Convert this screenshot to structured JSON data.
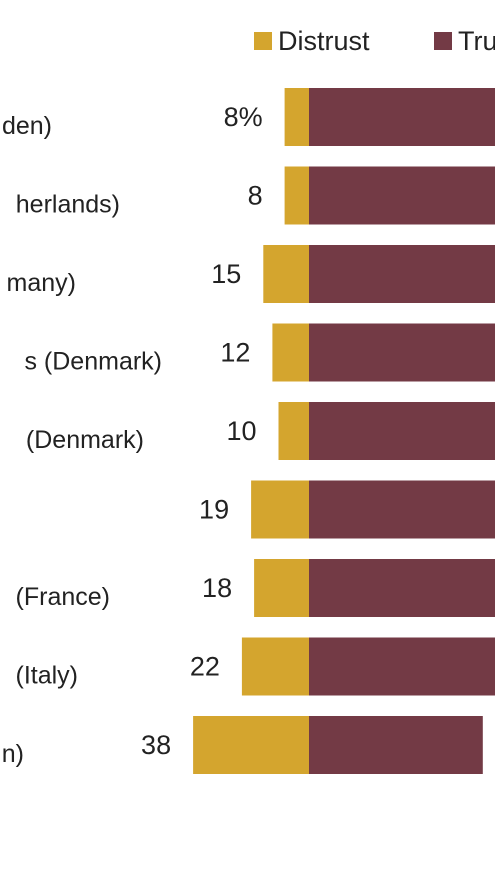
{
  "chart_data": {
    "type": "bar",
    "orientation": "horizontal",
    "stacked": "diverging",
    "title": "",
    "xlabel": "",
    "ylabel": "",
    "legend_placement": "top-right",
    "grid": false,
    "categories": [
      "den)",
      "herlands)",
      "many)",
      "s (Denmark)",
      "(Denmark)",
      "",
      "(France)",
      "(Italy)",
      "n)"
    ],
    "series": [
      {
        "name": "Distrust",
        "color": "#d4a52e",
        "values": [
          8,
          8,
          15,
          12,
          10,
          19,
          18,
          22,
          38
        ],
        "labels": [
          "8%",
          "8",
          "15",
          "12",
          "10",
          "19",
          "18",
          "22",
          "38"
        ]
      },
      {
        "name": "Tru",
        "color": "#733a45",
        "values": [
          null,
          null,
          null,
          null,
          null,
          null,
          null,
          null,
          57
        ]
      }
    ]
  }
}
